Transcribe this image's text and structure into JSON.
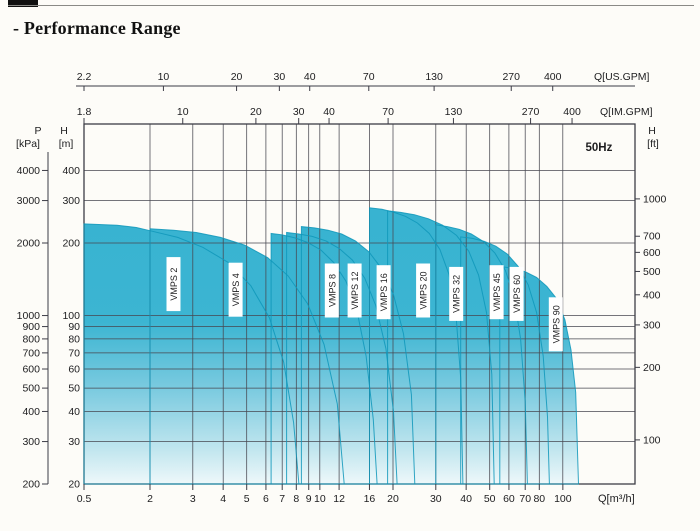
{
  "title": "- Performance Range",
  "chart_data": {
    "type": "area",
    "scale": "log-log",
    "frequency_label": "50Hz",
    "grid": true,
    "axes": {
      "x_bottom": {
        "label": "Q[m³/h]",
        "unit": "m3/h",
        "ticks": [
          0.5,
          2,
          3,
          4,
          5,
          6,
          7,
          8,
          9,
          10,
          12,
          16,
          20,
          30,
          40,
          50,
          60,
          70,
          80,
          100
        ],
        "tick_labels": [
          "0.5",
          "2",
          "3",
          "4",
          "5",
          "6",
          "7",
          "8",
          "9",
          "10",
          "12",
          "16",
          "20",
          "30",
          "40",
          "50",
          "60",
          "70",
          "80",
          "100"
        ],
        "range": [
          0.5,
          200
        ]
      },
      "x_top_us_gpm": {
        "label": "Q[US.GPM]",
        "unit": "US.GPM",
        "ticks": [
          2.2,
          10,
          20,
          30,
          40,
          70,
          130,
          270,
          400
        ],
        "tick_labels": [
          "2.2",
          "10",
          "20",
          "30",
          "40",
          "70",
          "130",
          "270",
          "400"
        ],
        "m3h_per_unit": 0.22712
      },
      "x_top_im_gpm": {
        "label": "Q[IM.GPM]",
        "unit": "IM.GPM",
        "ticks": [
          1.8,
          10,
          20,
          30,
          40,
          70,
          130,
          270,
          400
        ],
        "tick_labels": [
          "1.8",
          "10",
          "20",
          "30",
          "40",
          "70",
          "130",
          "270",
          "400"
        ],
        "m3h_per_unit": 0.27276
      },
      "y_head_m": {
        "title_top": "H",
        "title_unit": "[m]",
        "ticks": [
          20,
          30,
          40,
          50,
          60,
          70,
          80,
          90,
          100,
          200,
          300,
          400
        ],
        "range": [
          20,
          620
        ]
      },
      "y_pressure_kpa": {
        "title_top": "P",
        "title_unit": "[kPa]",
        "ticks": [
          200,
          300,
          400,
          500,
          600,
          700,
          800,
          900,
          1000,
          2000,
          3000,
          4000
        ],
        "kpa_per_m": 10
      },
      "y_head_ft": {
        "title_top": "H",
        "title_unit": "[ft]",
        "ticks": [
          100,
          200,
          300,
          400,
          500,
          600,
          700,
          1000
        ],
        "m_per_ft": 0.3048
      }
    },
    "series": [
      {
        "name": "VMPS 2",
        "label_q": 2.5,
        "label_h": 135,
        "envelope": [
          [
            0.5,
            240
          ],
          [
            1.0,
            237
          ],
          [
            1.5,
            232
          ],
          [
            2.0,
            225
          ],
          [
            2.6,
            211
          ],
          [
            3.3,
            192
          ],
          [
            4.2,
            166
          ],
          [
            5.2,
            133
          ],
          [
            6.2,
            98
          ],
          [
            7.1,
            64
          ],
          [
            7.8,
            36
          ],
          [
            8.2,
            20
          ]
        ]
      },
      {
        "name": "VMPS 4",
        "label_q": 4.5,
        "label_h": 128,
        "envelope": [
          [
            2,
            229
          ],
          [
            2.5,
            226
          ],
          [
            3.1,
            221
          ],
          [
            3.9,
            211
          ],
          [
            4.9,
            196
          ],
          [
            6.1,
            174
          ],
          [
            7.4,
            146
          ],
          [
            8.9,
            112
          ],
          [
            10.4,
            76
          ],
          [
            11.8,
            43
          ],
          [
            12.6,
            20
          ]
        ]
      },
      {
        "name": "VMPS 8",
        "label_q": 11.2,
        "label_h": 127,
        "envelope": [
          [
            6.3,
            219
          ],
          [
            7.0,
            216
          ],
          [
            7.9,
            210
          ],
          [
            8.9,
            201
          ],
          [
            10.1,
            187
          ],
          [
            11.4,
            166
          ],
          [
            12.8,
            139
          ],
          [
            14.2,
            105
          ],
          [
            15.5,
            68
          ],
          [
            16.6,
            37
          ],
          [
            17.2,
            20
          ]
        ]
      },
      {
        "name": "VMPS 12",
        "label_q": 13.9,
        "label_h": 127,
        "envelope": [
          [
            7.3,
            221
          ],
          [
            8.2,
            218
          ],
          [
            9.3,
            213
          ],
          [
            10.6,
            204
          ],
          [
            12.0,
            190
          ],
          [
            13.6,
            170
          ],
          [
            15.3,
            143
          ],
          [
            17.0,
            110
          ],
          [
            18.7,
            73
          ],
          [
            20.1,
            40
          ],
          [
            20.8,
            20
          ]
        ]
      },
      {
        "name": "VMPS 16",
        "label_q": 18.3,
        "label_h": 125,
        "envelope": [
          [
            8.4,
            234
          ],
          [
            9.5,
            231
          ],
          [
            10.8,
            226
          ],
          [
            12.3,
            218
          ],
          [
            14.0,
            204
          ],
          [
            15.9,
            184
          ],
          [
            18.0,
            156
          ],
          [
            20.1,
            122
          ],
          [
            22.1,
            84
          ],
          [
            23.8,
            47
          ],
          [
            24.6,
            20
          ]
        ]
      },
      {
        "name": "VMPS 20",
        "label_q": 26.6,
        "label_h": 127,
        "envelope": [
          [
            16,
            280
          ],
          [
            18,
            276
          ],
          [
            20,
            269
          ],
          [
            22.5,
            258
          ],
          [
            25.2,
            242
          ],
          [
            28.2,
            219
          ],
          [
            31.2,
            188
          ],
          [
            34.0,
            148
          ],
          [
            36.3,
            102
          ],
          [
            38.0,
            55
          ],
          [
            38.8,
            20
          ]
        ]
      },
      {
        "name": "VMPS 32",
        "label_q": 36.4,
        "label_h": 123,
        "envelope": [
          [
            19,
            272
          ],
          [
            21.5,
            268
          ],
          [
            24.5,
            262
          ],
          [
            28,
            252
          ],
          [
            32,
            237
          ],
          [
            36.5,
            215
          ],
          [
            41,
            185
          ],
          [
            45,
            147
          ],
          [
            48.5,
            103
          ],
          [
            51,
            57
          ],
          [
            52.2,
            20
          ]
        ]
      },
      {
        "name": "VMPS 45",
        "label_q": 53.4,
        "label_h": 125,
        "envelope": [
          [
            30,
            238
          ],
          [
            33.5,
            234
          ],
          [
            37.5,
            228
          ],
          [
            42,
            218
          ],
          [
            47,
            203
          ],
          [
            52.5,
            182
          ],
          [
            58,
            154
          ],
          [
            63,
            119
          ],
          [
            67,
            80
          ],
          [
            70,
            44
          ],
          [
            71.5,
            20
          ]
        ]
      },
      {
        "name": "VMPS 60",
        "label_q": 64.5,
        "label_h": 123,
        "envelope": [
          [
            38,
            212
          ],
          [
            42.5,
            209
          ],
          [
            47.5,
            203
          ],
          [
            53,
            194
          ],
          [
            59,
            180
          ],
          [
            65.5,
            160
          ],
          [
            72,
            134
          ],
          [
            78,
            103
          ],
          [
            83,
            68
          ],
          [
            86.5,
            38
          ],
          [
            88,
            20
          ]
        ]
      },
      {
        "name": "VMPS 90",
        "label_q": 93.5,
        "label_h": 92,
        "envelope": [
          [
            55,
            160
          ],
          [
            62,
            157
          ],
          [
            70,
            152
          ],
          [
            78,
            144
          ],
          [
            86,
            132
          ],
          [
            94,
            118
          ],
          [
            102,
            96
          ],
          [
            108,
            72
          ],
          [
            113,
            48
          ],
          [
            116,
            20
          ]
        ]
      }
    ],
    "colors": {
      "region_top": "#34b1d0",
      "region_mid": "#3cb5d2",
      "region_fade": "#bfe5ee",
      "region_bottom": "#eef8fa",
      "region_stroke": "#0f97ba",
      "grid": "#474750",
      "border": "#3c3c46",
      "text": "#1d1d1f"
    }
  }
}
